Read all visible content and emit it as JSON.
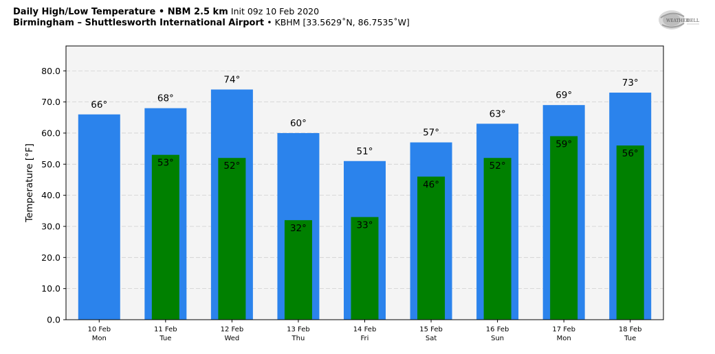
{
  "header": {
    "title_bold": "Daily High/Low Temperature • NBM 2.5 km",
    "title_init": "Init 09z 10 Feb 2020",
    "location_bold": "Birmingham – Shuttlesworth International Airport",
    "location_detail": "• KBHM [33.5629˚N, 86.7535˚W]"
  },
  "logo": {
    "text_left": "WEATHER",
    "text_right": "BELL"
  },
  "colors": {
    "high": "#2b83ec",
    "low": "#008000",
    "plot_bg": "#f4f4f4"
  },
  "chart_data": {
    "type": "bar",
    "ylabel": "Temperature [°F]",
    "ylim": [
      0,
      88
    ],
    "yticks": [
      0,
      10,
      20,
      30,
      40,
      50,
      60,
      70,
      80
    ],
    "ytick_labels": [
      "0.0",
      "10.0",
      "20.0",
      "30.0",
      "40.0",
      "50.0",
      "60.0",
      "70.0",
      "80.0"
    ],
    "grid": true,
    "categories": [
      {
        "date": "10 Feb",
        "day": "Mon"
      },
      {
        "date": "11 Feb",
        "day": "Tue"
      },
      {
        "date": "12 Feb",
        "day": "Wed"
      },
      {
        "date": "13 Feb",
        "day": "Thu"
      },
      {
        "date": "14 Feb",
        "day": "Fri"
      },
      {
        "date": "15 Feb",
        "day": "Sat"
      },
      {
        "date": "16 Feb",
        "day": "Sun"
      },
      {
        "date": "17 Feb",
        "day": "Mon"
      },
      {
        "date": "18 Feb",
        "day": "Tue"
      }
    ],
    "series": [
      {
        "key": "high",
        "values": [
          66,
          68,
          74,
          60,
          51,
          57,
          63,
          69,
          73
        ],
        "labels": [
          "66°",
          "68°",
          "74°",
          "60°",
          "51°",
          "57°",
          "63°",
          "69°",
          "73°"
        ]
      },
      {
        "key": "low",
        "values": [
          null,
          53,
          52,
          32,
          33,
          46,
          52,
          59,
          56
        ],
        "labels": [
          "",
          "53°",
          "52°",
          "32°",
          "33°",
          "46°",
          "52°",
          "59°",
          "56°"
        ]
      }
    ]
  }
}
